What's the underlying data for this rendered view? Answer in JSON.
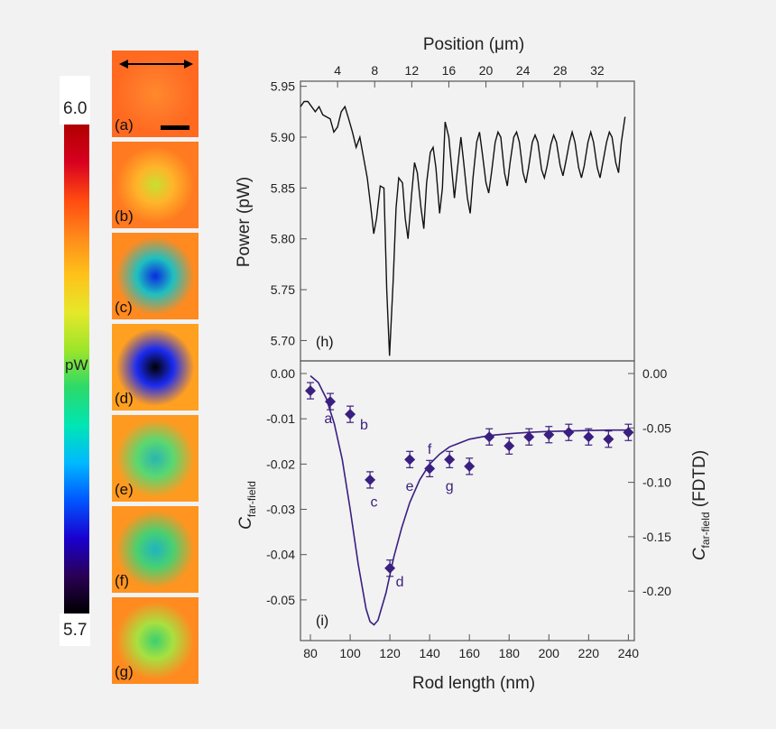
{
  "colorbar": {
    "max_label": "6.0",
    "min_label": "5.7",
    "unit_label": "pW",
    "stops": [
      "#000000",
      "#2a0055",
      "#1a00d0",
      "#0055ff",
      "#00b8ff",
      "#00e6b4",
      "#2bd96a",
      "#9ce52a",
      "#e5e82a",
      "#ffc21a",
      "#ff8a1a",
      "#ff4a10",
      "#d80020",
      "#b00000"
    ]
  },
  "maps": [
    {
      "label": "(a)",
      "center": "#ff8a2a",
      "mid": "#ff7a2a",
      "edge": "#ff6a20"
    },
    {
      "label": "(b)",
      "center": "#c6e030",
      "mid": "#ffb42a",
      "edge": "#ff7a20"
    },
    {
      "label": "(c)",
      "center": "#0a2be0",
      "mid": "#1ec0c0",
      "edge": "#ff8a20"
    },
    {
      "label": "(d)",
      "center": "#000000",
      "mid": "#1a2af0",
      "edge": "#ffa020"
    },
    {
      "label": "(e)",
      "center": "#2ab6b0",
      "mid": "#5ad870",
      "edge": "#ff9a20"
    },
    {
      "label": "(f)",
      "center": "#1eb4c0",
      "mid": "#4ad070",
      "edge": "#ff9420"
    },
    {
      "label": "(g)",
      "center": "#3ad070",
      "mid": "#a8e040",
      "edge": "#ff8a20"
    }
  ],
  "chart_data": [
    {
      "type": "line",
      "panel_label": "(h)",
      "xlabel": "Position (μm)",
      "ylabel": "Power (pW)",
      "xlim": [
        0,
        36
      ],
      "ylim": [
        5.68,
        5.955
      ],
      "x_ticks": [
        4,
        8,
        12,
        16,
        20,
        24,
        28,
        32
      ],
      "y_ticks": [
        5.7,
        5.75,
        5.8,
        5.85,
        5.9,
        5.95
      ],
      "series": [
        {
          "x": [
            0,
            0.4,
            0.8,
            1.2,
            1.6,
            2.0,
            2.4,
            2.8,
            3.2,
            3.6,
            4.0,
            4.4,
            4.8,
            5.2,
            5.6,
            6.0,
            6.4,
            6.8,
            7.2,
            7.6,
            7.9,
            8.2,
            8.6,
            9.0,
            9.3,
            9.6,
            10.0,
            10.3,
            10.6,
            11.0,
            11.3,
            11.6,
            12.0,
            12.3,
            12.6,
            13.0,
            13.3,
            13.6,
            14.0,
            14.3,
            14.6,
            15.0,
            15.3,
            15.6,
            16.0,
            16.3,
            16.6,
            17.0,
            17.3,
            17.6,
            18.0,
            18.3,
            18.6,
            19.0,
            19.3,
            19.6,
            20.0,
            20.3,
            20.6,
            21.0,
            21.3,
            21.6,
            22.0,
            22.3,
            22.6,
            23.0,
            23.3,
            23.6,
            24.0,
            24.3,
            24.6,
            25.0,
            25.3,
            25.6,
            26.0,
            26.3,
            26.6,
            27.0,
            27.3,
            27.6,
            28.0,
            28.3,
            28.6,
            29.0,
            29.3,
            29.6,
            30.0,
            30.3,
            30.6,
            31.0,
            31.3,
            31.6,
            32.0,
            32.3,
            32.6,
            33.0,
            33.3,
            33.6,
            34.0,
            34.3,
            34.6,
            35.0
          ],
          "y": [
            5.93,
            5.935,
            5.935,
            5.93,
            5.925,
            5.93,
            5.922,
            5.92,
            5.918,
            5.905,
            5.91,
            5.925,
            5.93,
            5.918,
            5.905,
            5.89,
            5.9,
            5.88,
            5.86,
            5.83,
            5.805,
            5.82,
            5.852,
            5.85,
            5.75,
            5.685,
            5.76,
            5.83,
            5.86,
            5.855,
            5.82,
            5.8,
            5.845,
            5.875,
            5.865,
            5.83,
            5.81,
            5.855,
            5.885,
            5.89,
            5.87,
            5.825,
            5.85,
            5.915,
            5.9,
            5.87,
            5.84,
            5.875,
            5.9,
            5.875,
            5.84,
            5.825,
            5.86,
            5.895,
            5.905,
            5.885,
            5.855,
            5.845,
            5.865,
            5.895,
            5.905,
            5.9,
            5.865,
            5.852,
            5.875,
            5.9,
            5.905,
            5.895,
            5.865,
            5.855,
            5.87,
            5.895,
            5.902,
            5.895,
            5.868,
            5.86,
            5.872,
            5.893,
            5.902,
            5.895,
            5.872,
            5.862,
            5.875,
            5.895,
            5.905,
            5.895,
            5.87,
            5.86,
            5.872,
            5.895,
            5.905,
            5.895,
            5.87,
            5.86,
            5.875,
            5.895,
            5.905,
            5.9,
            5.875,
            5.865,
            5.895,
            5.92
          ]
        }
      ]
    },
    {
      "type": "scatter",
      "panel_label": "(i)",
      "xlabel": "Rod length (nm)",
      "ylabel_left": "C",
      "ylabel_left_sub": "far-field",
      "ylabel_right": "C",
      "ylabel_right_sub": "far-field",
      "ylabel_right_suffix": " (FDTD)",
      "xlim": [
        75,
        243
      ],
      "ylim_left": [
        -0.056,
        0.0
      ],
      "ylim_right": [
        -0.233,
        0.0
      ],
      "x_ticks": [
        80,
        100,
        120,
        140,
        160,
        180,
        200,
        220,
        240
      ],
      "y_ticks_left": [
        "0.00",
        "-0.01",
        "-0.02",
        "-0.03",
        "-0.04",
        "-0.05"
      ],
      "y_ticks_right": [
        "0.00",
        "-0.05",
        "-0.10",
        "-0.15",
        "-0.20"
      ],
      "points": {
        "x": [
          80,
          90,
          100,
          110,
          120,
          130,
          140,
          150,
          160,
          170,
          180,
          190,
          200,
          210,
          220,
          230,
          240
        ],
        "y": [
          -0.0038,
          -0.0062,
          -0.009,
          -0.0235,
          -0.043,
          -0.019,
          -0.021,
          -0.019,
          -0.0205,
          -0.014,
          -0.016,
          -0.014,
          -0.0135,
          -0.013,
          -0.014,
          -0.0145,
          -0.013
        ],
        "err": [
          0.0018,
          0.0018,
          0.0018,
          0.0018,
          0.0018,
          0.0018,
          0.0018,
          0.0018,
          0.0018,
          0.0018,
          0.0018,
          0.0018,
          0.0018,
          0.0018,
          0.0018,
          0.0018,
          0.0018
        ]
      },
      "point_labels": [
        {
          "text": "a",
          "x": 89,
          "y": -0.0098
        },
        {
          "text": "b",
          "x": 107,
          "y": -0.0112
        },
        {
          "text": "c",
          "x": 112,
          "y": -0.0282
        },
        {
          "text": "d",
          "x": 125,
          "y": -0.0458
        },
        {
          "text": "e",
          "x": 130,
          "y": -0.0247
        },
        {
          "text": "f",
          "x": 140,
          "y": -0.0165
        },
        {
          "text": "g",
          "x": 150,
          "y": -0.0247
        }
      ],
      "fit": {
        "x": [
          80,
          84,
          88,
          92,
          96,
          100,
          104,
          108,
          110,
          112,
          114,
          118,
          122,
          126,
          130,
          135,
          140,
          145,
          150,
          160,
          170,
          180,
          190,
          200,
          210,
          220,
          230,
          240
        ],
        "y": [
          -0.0005,
          -0.002,
          -0.0055,
          -0.011,
          -0.019,
          -0.03,
          -0.042,
          -0.052,
          -0.0548,
          -0.0555,
          -0.0545,
          -0.0485,
          -0.0405,
          -0.034,
          -0.0285,
          -0.0235,
          -0.02,
          -0.0178,
          -0.0162,
          -0.0145,
          -0.0137,
          -0.0133,
          -0.013,
          -0.0128,
          -0.0127,
          -0.0126,
          -0.0125,
          -0.0125
        ]
      }
    }
  ]
}
